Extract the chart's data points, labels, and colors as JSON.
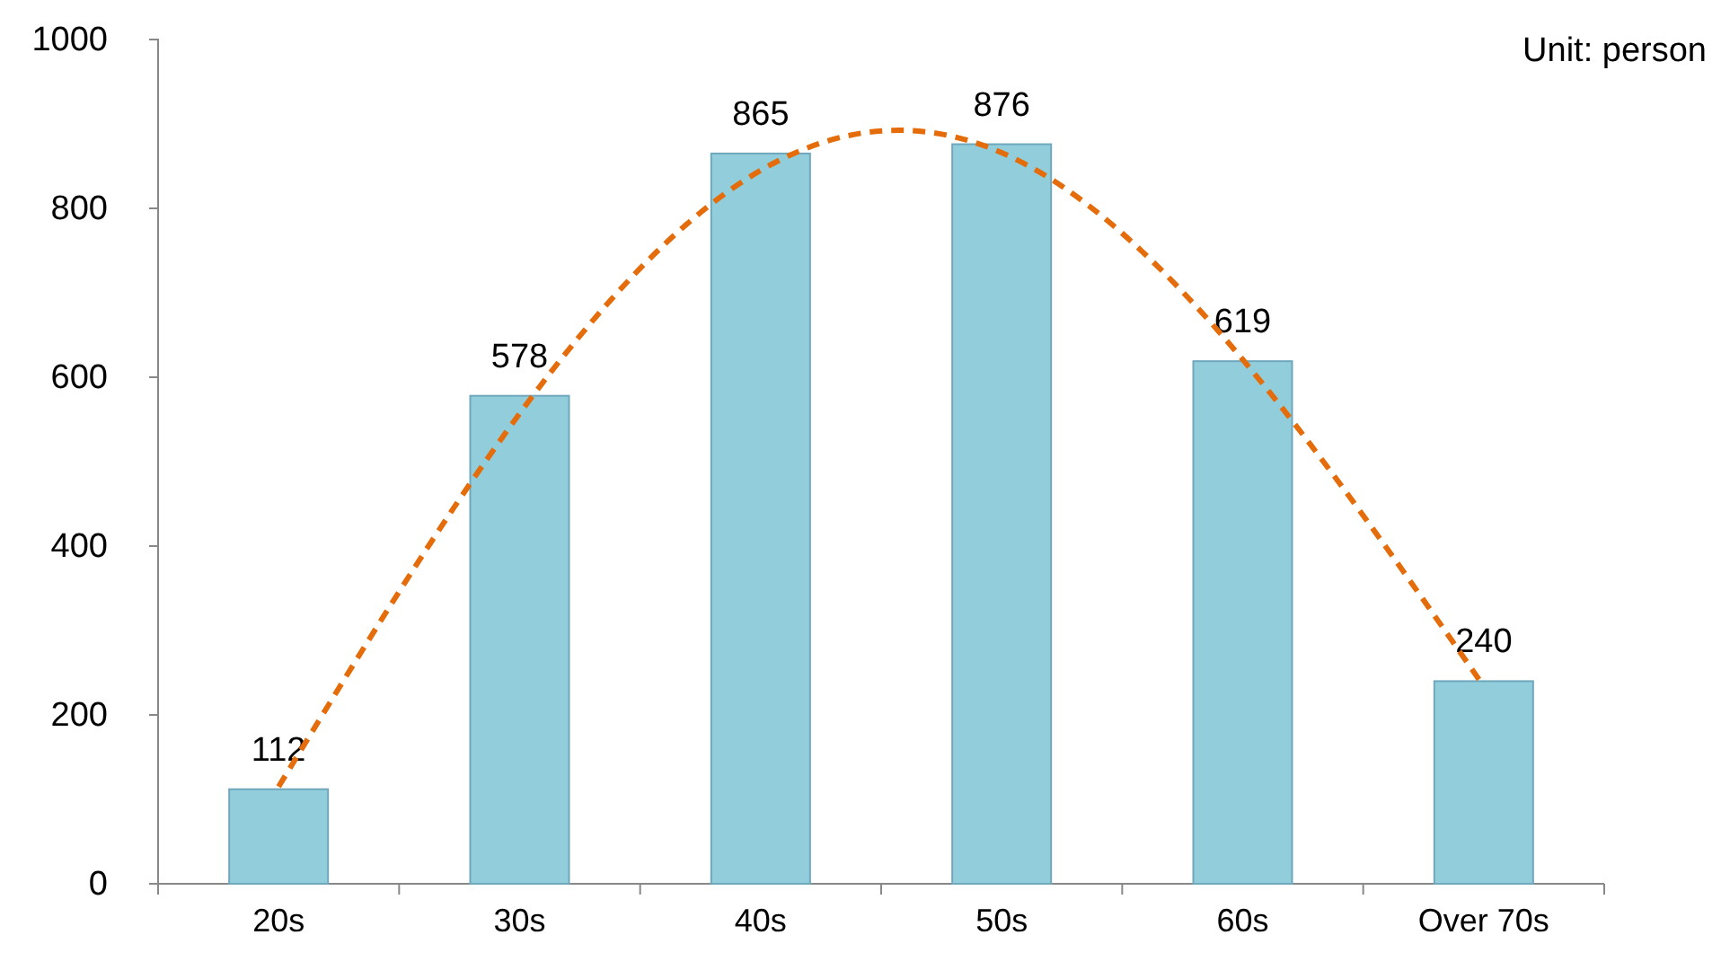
{
  "chart_data": {
    "type": "bar",
    "categories": [
      "20s",
      "30s",
      "40s",
      "50s",
      "60s",
      "Over 70s"
    ],
    "series": [
      {
        "color": "#92cddc",
        "values": [
          112,
          578,
          865,
          876,
          619,
          240
        ],
        "value_labels": [
          "112",
          "578",
          "865",
          "876",
          "619",
          "240"
        ]
      },
      {
        "type": "line",
        "color": "#e46c0a",
        "values": [
          115,
          557,
          845,
          866,
          621,
          234
        ],
        "line_style": "dashed",
        "marker": "none"
      }
    ],
    "ylim": [
      0,
      1000
    ],
    "yticks": [
      0,
      200,
      400,
      600,
      800,
      1000
    ],
    "grid": false,
    "annotations": [
      "Unit: person"
    ]
  }
}
